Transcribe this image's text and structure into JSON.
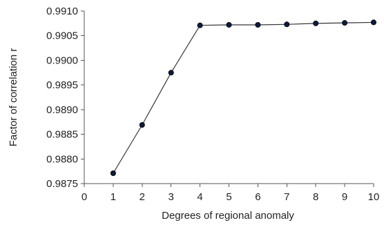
{
  "chart_data": {
    "type": "line",
    "title": "",
    "xlabel": "Degrees of regional anomaly",
    "ylabel": "Factor of correlation r",
    "xlim": [
      0,
      10
    ],
    "ylim": [
      0.9875,
      0.991
    ],
    "x_ticks": [
      "0",
      "1",
      "2",
      "3",
      "4",
      "5",
      "6",
      "7",
      "8",
      "9",
      "10"
    ],
    "y_ticks": [
      "0.9875",
      "0.9880",
      "0.9885",
      "0.9890",
      "0.9895",
      "0.9900",
      "0.9905",
      "0.9910"
    ],
    "grid": false,
    "legend": "none",
    "series": [
      {
        "x": [
          1,
          2,
          3,
          4,
          5,
          6,
          7,
          8,
          9,
          10
        ],
        "values": [
          0.98771,
          0.98869,
          0.98975,
          0.99071,
          0.99072,
          0.99072,
          0.99073,
          0.99075,
          0.99076,
          0.99077
        ]
      }
    ],
    "colors": {
      "line": "#333333",
      "marker": "#0d1b3e",
      "axis": "#555555"
    }
  }
}
